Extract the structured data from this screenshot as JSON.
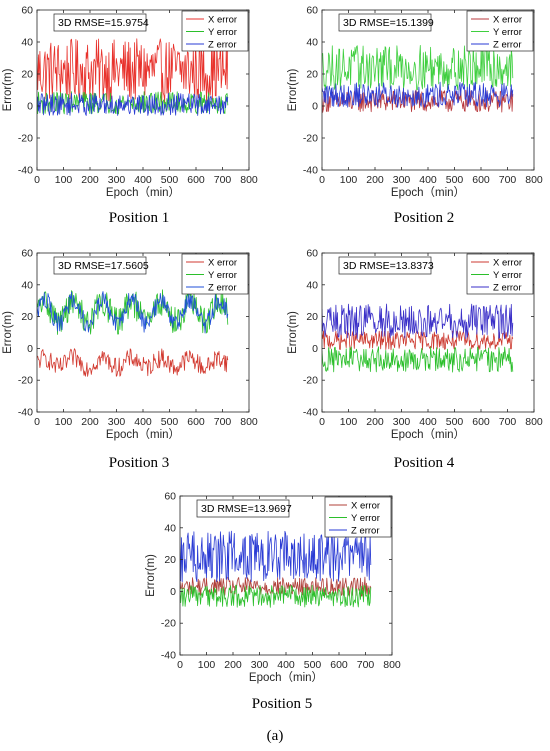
{
  "figure": {
    "panel_label": "(a)"
  },
  "chart_data": [
    {
      "type": "line",
      "caption": "Position 1",
      "rmse_label": "3D RMSE=15.9754",
      "xlabel": "Epoch（min）",
      "ylabel": "Error(m)",
      "xlim": [
        0,
        800
      ],
      "ylim": [
        -40,
        60
      ],
      "xticks": [
        "0",
        "100",
        "200",
        "300",
        "400",
        "500",
        "600",
        "700",
        "800"
      ],
      "yticks": [
        "-40",
        "-20",
        "0",
        "20",
        "40",
        "60"
      ],
      "grid": false,
      "legend_position": "top-right",
      "x_range": [
        0,
        720
      ],
      "series": [
        {
          "name": "X error",
          "color": "#e8322c",
          "mean": 22,
          "amp": 20,
          "period": 0,
          "osc": 0
        },
        {
          "name": "Y error",
          "color": "#2bbf2b",
          "mean": 2,
          "amp": 7,
          "period": 0,
          "osc": 0
        },
        {
          "name": "Z error",
          "color": "#2a3bd4",
          "mean": 1,
          "amp": 7,
          "period": 0,
          "osc": 0
        }
      ]
    },
    {
      "type": "line",
      "caption": "Position 2",
      "rmse_label": "3D RMSE=15.1399",
      "xlabel": "Epoch（min）",
      "ylabel": "Error(m)",
      "xlim": [
        0,
        800
      ],
      "ylim": [
        -40,
        60
      ],
      "xticks": [
        "0",
        "100",
        "200",
        "300",
        "400",
        "500",
        "600",
        "700",
        "800"
      ],
      "yticks": [
        "-40",
        "-20",
        "0",
        "20",
        "40",
        "60"
      ],
      "grid": false,
      "legend_position": "top-right",
      "x_range": [
        0,
        720
      ],
      "series": [
        {
          "name": "X error",
          "color": "#b8383c",
          "mean": 3,
          "amp": 7,
          "period": 0,
          "osc": 0
        },
        {
          "name": "Y error",
          "color": "#3fcf3f",
          "mean": 24,
          "amp": 14,
          "period": 0,
          "osc": 0
        },
        {
          "name": "Z error",
          "color": "#2a3bd4",
          "mean": 7,
          "amp": 8,
          "period": 0,
          "osc": 0
        }
      ]
    },
    {
      "type": "line",
      "caption": "Position 3",
      "rmse_label": "3D RMSE=17.5605",
      "xlabel": "Epoch（min）",
      "ylabel": "Error(m)",
      "xlim": [
        0,
        800
      ],
      "ylim": [
        -40,
        60
      ],
      "xticks": [
        "0",
        "100",
        "200",
        "300",
        "400",
        "500",
        "600",
        "700",
        "800"
      ],
      "yticks": [
        "-40",
        "-20",
        "0",
        "20",
        "40",
        "60"
      ],
      "grid": false,
      "legend_position": "top-right",
      "x_range": [
        0,
        720
      ],
      "series": [
        {
          "name": "X error",
          "color": "#d23a30",
          "mean": -9,
          "amp": 6,
          "period": 110,
          "osc": 3
        },
        {
          "name": "Y error",
          "color": "#2bbf2b",
          "mean": 23,
          "amp": 9,
          "period": 110,
          "osc": 6
        },
        {
          "name": "Z error",
          "color": "#1f4fd8",
          "mean": 23,
          "amp": 6,
          "period": 110,
          "osc": 8
        }
      ]
    },
    {
      "type": "line",
      "caption": "Position 4",
      "rmse_label": "3D RMSE=13.8373",
      "xlabel": "Epoch（min）",
      "ylabel": "Error(m)",
      "xlim": [
        0,
        800
      ],
      "ylim": [
        -40,
        60
      ],
      "xticks": [
        "0",
        "100",
        "200",
        "300",
        "400",
        "500",
        "600",
        "700",
        "800"
      ],
      "yticks": [
        "-40",
        "-20",
        "0",
        "20",
        "40",
        "60"
      ],
      "grid": false,
      "legend_position": "top-right",
      "x_range": [
        0,
        720
      ],
      "series": [
        {
          "name": "X error",
          "color": "#cc3a30",
          "mean": 5,
          "amp": 6,
          "period": 0,
          "osc": 0
        },
        {
          "name": "Y error",
          "color": "#2bbf2b",
          "mean": -7,
          "amp": 8,
          "period": 0,
          "osc": 0
        },
        {
          "name": "Z error",
          "color": "#3a2fc8",
          "mean": 17,
          "amp": 11,
          "period": 0,
          "osc": 0
        }
      ]
    },
    {
      "type": "line",
      "caption": "Position 5",
      "rmse_label": "3D RMSE=13.9697",
      "xlabel": "Epoch（min）",
      "ylabel": "Error(m)",
      "xlim": [
        0,
        800
      ],
      "ylim": [
        -40,
        60
      ],
      "xticks": [
        "0",
        "100",
        "200",
        "300",
        "400",
        "500",
        "600",
        "700",
        "800"
      ],
      "yticks": [
        "-40",
        "-20",
        "0",
        "20",
        "40",
        "60"
      ],
      "grid": false,
      "legend_position": "top-right",
      "x_range": [
        0,
        720
      ],
      "series": [
        {
          "name": "X error",
          "color": "#b0403a",
          "mean": 3,
          "amp": 6,
          "period": 0,
          "osc": 0
        },
        {
          "name": "Y error",
          "color": "#2bbf2b",
          "mean": -3,
          "amp": 7,
          "period": 0,
          "osc": 0
        },
        {
          "name": "Z error",
          "color": "#2a3bd4",
          "mean": 22,
          "amp": 16,
          "period": 0,
          "osc": 0
        }
      ]
    }
  ]
}
